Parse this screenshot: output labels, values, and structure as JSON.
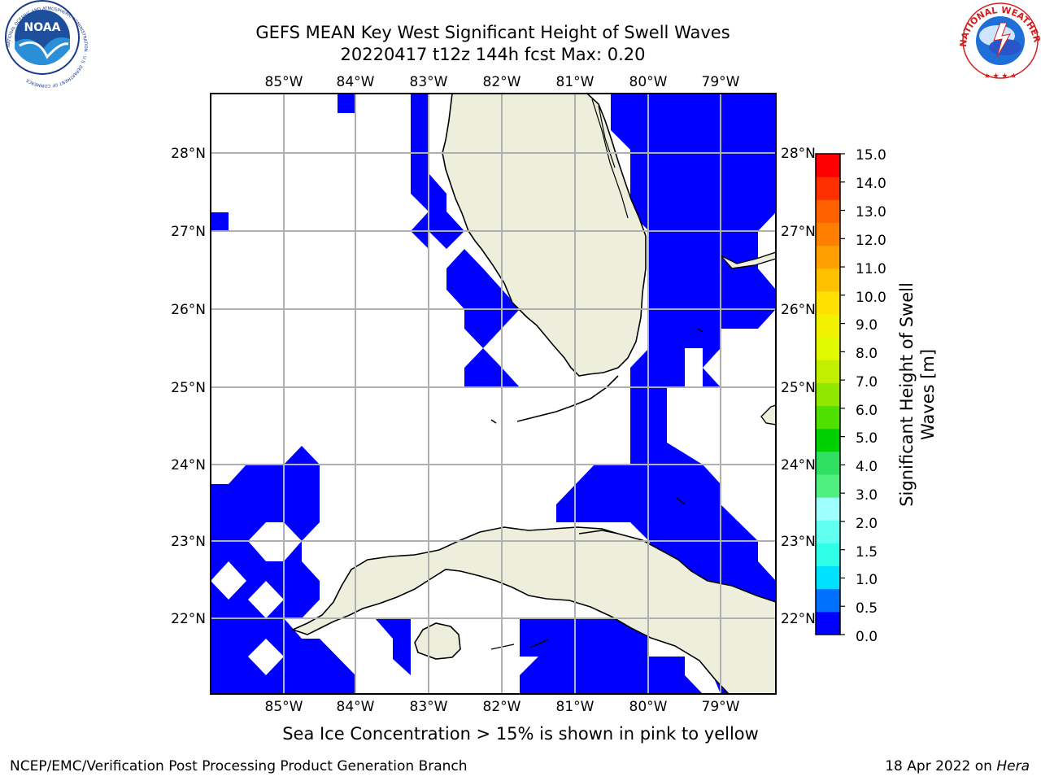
{
  "header": {
    "title_line1": "GEFS MEAN Key West Significant Height of Swell Waves",
    "title_line2": "20220417 t12z 144h fcst   Max: 0.20"
  },
  "logos": {
    "noaa_text": "NOAA",
    "noaa_ring_text": "NATIONAL OCEANIC AND ATMOSPHERIC ADMINISTRATION · U.S. DEPARTMENT OF COMMERCE",
    "nws_ring_text": "NATIONAL WEATHER SERVICE"
  },
  "map": {
    "lon_labels": [
      "85°W",
      "84°W",
      "83°W",
      "82°W",
      "81°W",
      "80°W",
      "79°W"
    ],
    "lat_labels": [
      "28°N",
      "27°N",
      "26°N",
      "25°N",
      "24°N",
      "23°N",
      "22°N"
    ],
    "land_color": "#eeeedc",
    "ocean_color": "#ffffff",
    "swell_color": "#0000ff",
    "grid_color": "#b0b0b0"
  },
  "colorbar": {
    "label": "Significant Height of Swell Waves [m]",
    "label_line1": "Significant Height of Swell",
    "label_line2": "Waves [m]",
    "ticks": [
      "15.0",
      "14.0",
      "13.0",
      "12.0",
      "11.0",
      "10.0",
      "9.0",
      "8.0",
      "7.0",
      "6.0",
      "5.0",
      "4.0",
      "3.0",
      "2.0",
      "1.5",
      "1.0",
      "0.5",
      "0.0"
    ],
    "colors_bottom_to_top": [
      "#0000ff",
      "#0070ff",
      "#00e0ff",
      "#30ffe8",
      "#60fff0",
      "#a0ffff",
      "#50f080",
      "#30e060",
      "#00d000",
      "#50e000",
      "#90e800",
      "#c0f000",
      "#e0f800",
      "#f0f000",
      "#ffe000",
      "#ffc000",
      "#ffa000",
      "#ff8000",
      "#ff6000",
      "#ff3000",
      "#ff0000"
    ]
  },
  "caption": "Sea Ice Concentration > 15% is shown in pink to yellow",
  "footer": {
    "left": "NCEP/EMC/Verification Post Processing Product Generation Branch",
    "date": "18 Apr 2022 on",
    "machine": "Hera"
  }
}
